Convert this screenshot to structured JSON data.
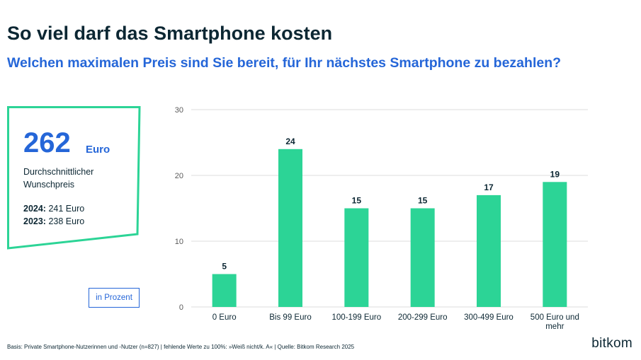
{
  "header": {
    "title": "So viel darf das Smartphone kosten",
    "subtitle": "Welchen maximalen Preis sind Sie bereit, für Ihr nächstes Smartphone zu bezahlen?"
  },
  "highlight": {
    "value": "262",
    "unit": "Euro",
    "description": "Durchschnittlicher Wunschpreis",
    "previous": [
      {
        "year": "2024:",
        "value": "241 Euro"
      },
      {
        "year": "2023:",
        "value": "238 Euro"
      }
    ]
  },
  "unit_note": "in Prozent",
  "footnote": "Basis: Private Smartphone-Nutzerinnen und -Nutzer (n=827) | fehlende Werte zu 100%: »Weiß nicht/k. A« | Quelle: Bitkom Research 2025",
  "logo_text": "bitkom",
  "colors": {
    "bar": "#2cd496",
    "accent": "#2566d8",
    "box_border": "#2cd496",
    "text": "#0c2733"
  },
  "chart_data": {
    "type": "bar",
    "categories": [
      [
        "0 Euro"
      ],
      [
        "Bis 99 Euro"
      ],
      [
        "100-199 Euro"
      ],
      [
        "200-299 Euro"
      ],
      [
        "300-499 Euro"
      ],
      [
        "500 Euro und",
        "mehr"
      ]
    ],
    "values": [
      5,
      24,
      15,
      15,
      17,
      19
    ],
    "ylim": [
      0,
      30
    ],
    "yticks": [
      0,
      10,
      20,
      30
    ],
    "grid": true,
    "data_labels": true
  }
}
